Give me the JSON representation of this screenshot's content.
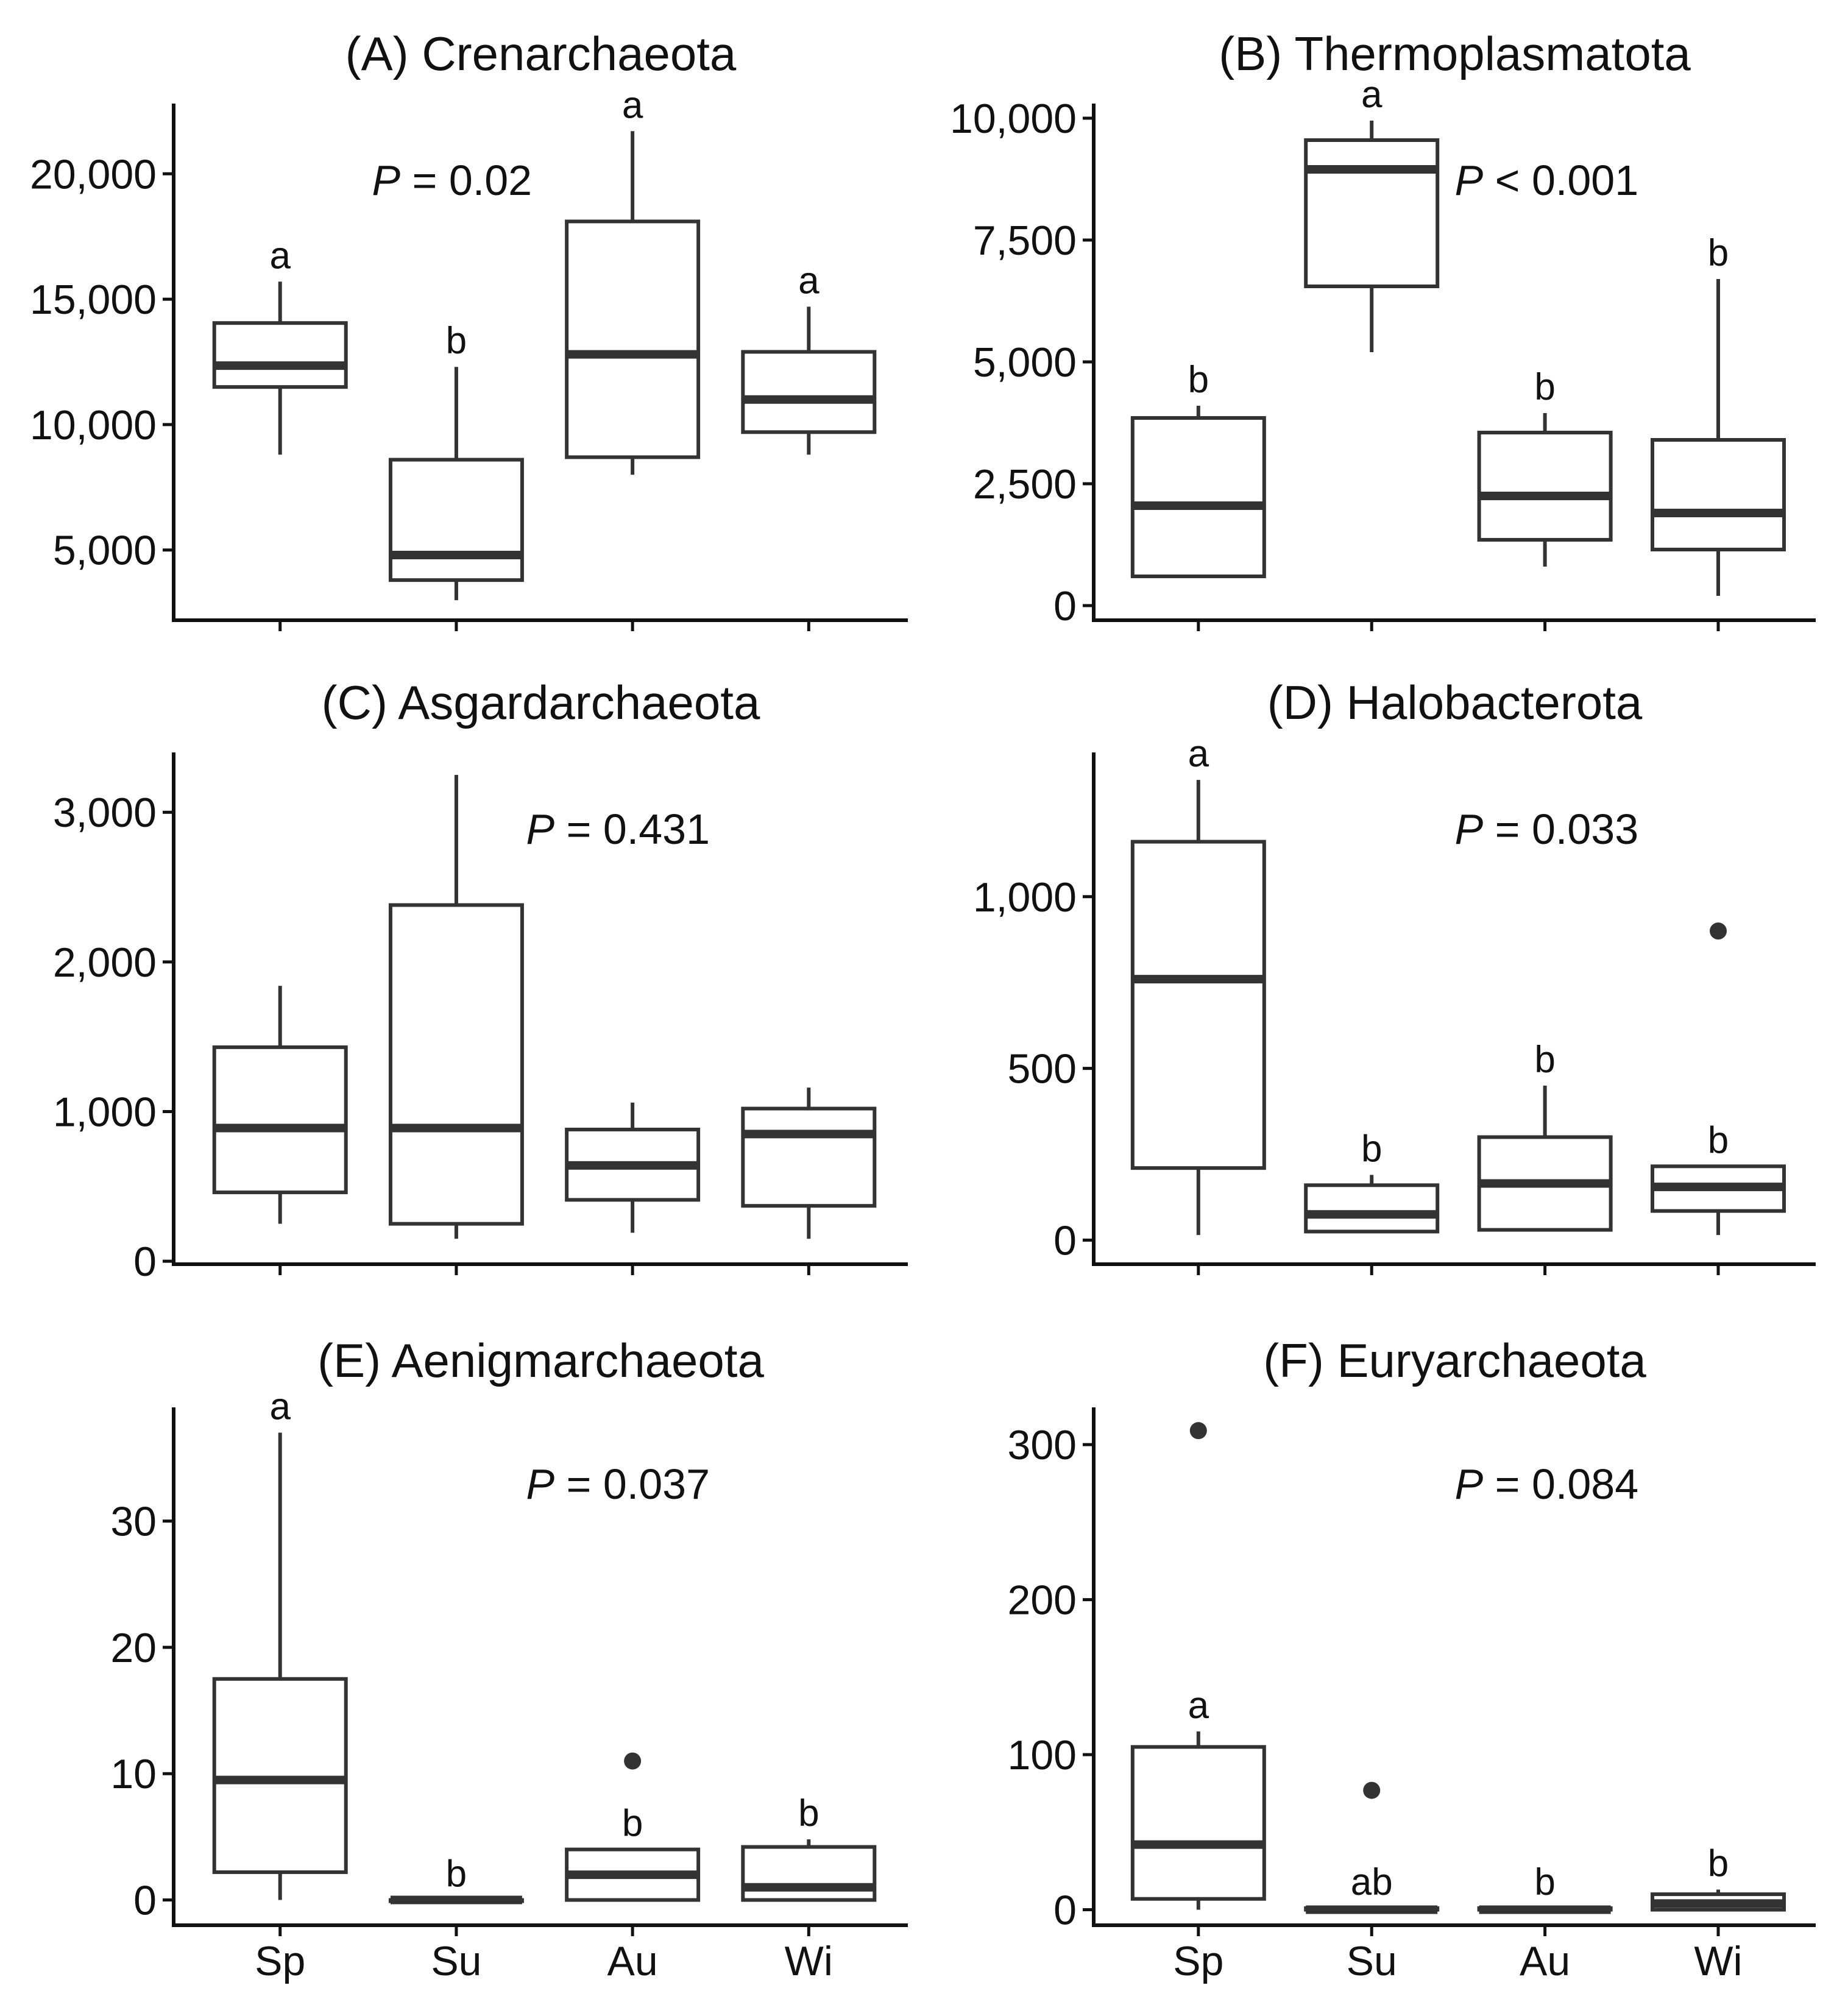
{
  "chart_data": [
    {
      "type": "box",
      "title": "(A) Crenarchaeota",
      "p_label": "P",
      "p_text": " = 0.02",
      "categories": [
        "Sp",
        "Su",
        "Au",
        "Wi"
      ],
      "yticks": [
        5000,
        10000,
        15000,
        20000
      ],
      "ytick_labels": [
        "5,000",
        "10,000",
        "15,000",
        "20,000"
      ],
      "ylim": [
        2200,
        22800
      ],
      "boxes": [
        {
          "min": 8800,
          "q1": 11500,
          "median": 12350,
          "q3": 14050,
          "max": 15700,
          "letter": "a",
          "outliers": []
        },
        {
          "min": 3000,
          "q1": 3800,
          "median": 4800,
          "q3": 8600,
          "max": 12300,
          "letter": "b",
          "outliers": []
        },
        {
          "min": 8000,
          "q1": 8700,
          "median": 12800,
          "q3": 18100,
          "max": 21700,
          "letter": "a",
          "outliers": []
        },
        {
          "min": 8800,
          "q1": 9700,
          "median": 11000,
          "q3": 12900,
          "max": 14700,
          "letter": "a",
          "outliers": []
        }
      ],
      "p_pos": "top-center"
    },
    {
      "type": "box",
      "title": "(B) Thermoplasmatota",
      "p_label": "P",
      "p_text": " < 0.001",
      "categories": [
        "Sp",
        "Su",
        "Au",
        "Wi"
      ],
      "yticks": [
        0,
        2500,
        5000,
        7500,
        10000
      ],
      "ytick_labels": [
        "0",
        "2,500",
        "5,000",
        "7,500",
        "10,000"
      ],
      "ylim": [
        -300,
        10300
      ],
      "boxes": [
        {
          "min": 600,
          "q1": 600,
          "median": 2050,
          "q3": 3850,
          "max": 4100,
          "letter": "b",
          "outliers": []
        },
        {
          "min": 5200,
          "q1": 6550,
          "median": 8950,
          "q3": 9550,
          "max": 9950,
          "letter": "a",
          "outliers": []
        },
        {
          "min": 800,
          "q1": 1350,
          "median": 2250,
          "q3": 3550,
          "max": 3950,
          "letter": "b",
          "outliers": []
        },
        {
          "min": 200,
          "q1": 1150,
          "median": 1900,
          "q3": 3400,
          "max": 6700,
          "letter": "b",
          "outliers": []
        }
      ],
      "p_pos": "top-right"
    },
    {
      "type": "box",
      "title": "(C) Asgardarchaeota",
      "p_label": "P",
      "p_text": " = 0.431",
      "categories": [
        "Sp",
        "Su",
        "Au",
        "Wi"
      ],
      "yticks": [
        0,
        1000,
        2000,
        3000
      ],
      "ytick_labels": [
        "0",
        "1,000",
        "2,000",
        "3,000"
      ],
      "ylim": [
        -20,
        3400
      ],
      "boxes": [
        {
          "min": 250,
          "q1": 460,
          "median": 890,
          "q3": 1430,
          "max": 1840,
          "letter": "",
          "outliers": []
        },
        {
          "min": 150,
          "q1": 250,
          "median": 890,
          "q3": 2380,
          "max": 3250,
          "letter": "",
          "outliers": []
        },
        {
          "min": 190,
          "q1": 410,
          "median": 640,
          "q3": 880,
          "max": 1060,
          "letter": "",
          "outliers": []
        },
        {
          "min": 150,
          "q1": 370,
          "median": 850,
          "q3": 1020,
          "max": 1160,
          "letter": "",
          "outliers": []
        }
      ],
      "p_pos": "top-center"
    },
    {
      "type": "box",
      "title": "(D) Halobacterota",
      "p_label": "P",
      "p_text": " = 0.033",
      "categories": [
        "Sp",
        "Su",
        "Au",
        "Wi"
      ],
      "yticks": [
        0,
        500,
        1000
      ],
      "ytick_labels": [
        "0",
        "500",
        "1,000"
      ],
      "ylim": [
        -70,
        1420
      ],
      "boxes": [
        {
          "min": 15,
          "q1": 210,
          "median": 760,
          "q3": 1160,
          "max": 1340,
          "letter": "a",
          "outliers": []
        },
        {
          "min": 25,
          "q1": 25,
          "median": 75,
          "q3": 160,
          "max": 190,
          "letter": "b",
          "outliers": []
        },
        {
          "min": 30,
          "q1": 30,
          "median": 165,
          "q3": 300,
          "max": 450,
          "letter": "b",
          "outliers": []
        },
        {
          "min": 15,
          "q1": 85,
          "median": 155,
          "q3": 215,
          "max": 215,
          "letter": "b",
          "outliers": [
            900
          ]
        }
      ],
      "p_pos": "top-right"
    },
    {
      "type": "box",
      "title": "(E) Aenigmarchaeota",
      "p_label": "P",
      "p_text": " = 0.037",
      "categories": [
        "Sp",
        "Su",
        "Au",
        "Wi"
      ],
      "yticks": [
        0,
        10,
        20,
        30
      ],
      "ytick_labels": [
        "0",
        "10",
        "20",
        "30"
      ],
      "ylim": [
        -2,
        39
      ],
      "boxes": [
        {
          "min": 0,
          "q1": 2.2,
          "median": 9.5,
          "q3": 17.5,
          "max": 37,
          "letter": "a",
          "outliers": []
        },
        {
          "min": 0,
          "q1": 0,
          "median": 0,
          "q3": 0,
          "max": 0,
          "letter": "b",
          "outliers": []
        },
        {
          "min": 0,
          "q1": 0,
          "median": 2,
          "q3": 4,
          "max": 4,
          "letter": "b",
          "outliers": [
            11
          ]
        },
        {
          "min": 0,
          "q1": 0,
          "median": 1,
          "q3": 4.2,
          "max": 4.8,
          "letter": "b",
          "outliers": []
        }
      ],
      "p_pos": "top-center"
    },
    {
      "type": "box",
      "title": "(F) Euryarchaeota",
      "p_label": "P",
      "p_text": " = 0.084",
      "categories": [
        "Sp",
        "Su",
        "Au",
        "Wi"
      ],
      "yticks": [
        0,
        100,
        200,
        300
      ],
      "ytick_labels": [
        "0",
        "100",
        "200",
        "300"
      ],
      "ylim": [
        -10,
        324
      ],
      "boxes": [
        {
          "min": 0,
          "q1": 7,
          "median": 42,
          "q3": 105,
          "max": 115,
          "letter": "a",
          "outliers": [
            309
          ]
        },
        {
          "min": 0,
          "q1": 0,
          "median": 0,
          "q3": 1,
          "max": 1,
          "letter": "ab",
          "outliers": [
            77
          ]
        },
        {
          "min": 0,
          "q1": 0,
          "median": 0,
          "q3": 1,
          "max": 1,
          "letter": "b",
          "outliers": []
        },
        {
          "min": 0,
          "q1": 0,
          "median": 4,
          "q3": 10,
          "max": 13,
          "letter": "b",
          "outliers": []
        }
      ],
      "p_pos": "top-right"
    }
  ]
}
